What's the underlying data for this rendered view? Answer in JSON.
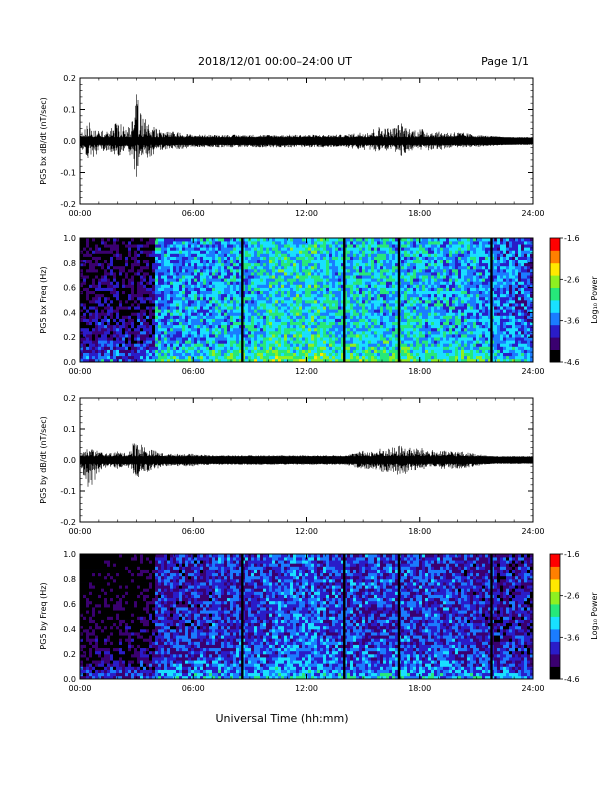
{
  "header": {
    "date_range": "2018/12/01  00:00–24:00 UT",
    "page": "Page 1/1"
  },
  "footer": {
    "xlabel": "Universal Time (hh:mm)"
  },
  "colors": {
    "trace": "#000000",
    "colormap": [
      "#000000",
      "#3a0070",
      "#2a1cc8",
      "#1a7cff",
      "#19e0ff",
      "#26e87a",
      "#8ef021",
      "#ffe800",
      "#ff8000",
      "#ff0000"
    ]
  },
  "chart_data": [
    {
      "type": "line",
      "ylabel": "PG5 bx dB/dt (nT/sec)",
      "xlim": [
        0,
        24
      ],
      "ylim": [
        -0.2,
        0.2
      ],
      "xticks": [
        "00:00",
        "06:00",
        "12:00",
        "18:00",
        "24:00"
      ],
      "yticks": [
        "-0.2",
        "-0.1",
        "0.0",
        "0.1",
        "0.2"
      ],
      "envelope": {
        "x": [
          0,
          0.5,
          1,
          1.5,
          2,
          2.5,
          3,
          3.2,
          3.5,
          4,
          4.5,
          5,
          6,
          7,
          8,
          9,
          10,
          11,
          12,
          13,
          14,
          15,
          15.5,
          16,
          16.5,
          17,
          17.5,
          18,
          19,
          20,
          21,
          22,
          23,
          24
        ],
        "y_max": [
          0.02,
          0.06,
          0.04,
          0.03,
          0.07,
          0.03,
          0.15,
          0.1,
          0.07,
          0.04,
          0.03,
          0.03,
          0.02,
          0.02,
          0.02,
          0.02,
          0.02,
          0.02,
          0.02,
          0.02,
          0.02,
          0.03,
          0.04,
          0.05,
          0.04,
          0.06,
          0.04,
          0.04,
          0.03,
          0.03,
          0.02,
          0.015,
          0.01,
          0.01
        ],
        "y_min": [
          -0.02,
          -0.06,
          -0.04,
          -0.03,
          -0.05,
          -0.03,
          -0.12,
          -0.1,
          -0.06,
          -0.04,
          -0.03,
          -0.03,
          -0.02,
          -0.02,
          -0.02,
          -0.02,
          -0.02,
          -0.02,
          -0.02,
          -0.02,
          -0.02,
          -0.03,
          -0.03,
          -0.04,
          -0.03,
          -0.05,
          -0.03,
          -0.03,
          -0.03,
          -0.02,
          -0.02,
          -0.015,
          -0.01,
          -0.01
        ]
      }
    },
    {
      "type": "heatmap",
      "ylabel": "PG5 bx Freq (Hz)",
      "colorbar_label": "Log₁₀ Power",
      "xlim": [
        0,
        24
      ],
      "ylim": [
        0,
        1
      ],
      "xticks": [
        "00:00",
        "06:00",
        "12:00",
        "18:00",
        "24:00"
      ],
      "yticks": [
        "0.0",
        "0.2",
        "0.4",
        "0.6",
        "0.8",
        "1.0"
      ],
      "clim": [
        -4.6,
        -1.6
      ],
      "cticks": [
        "-1.6",
        "-2.6",
        "-3.6",
        "-4.6"
      ],
      "gaps_hours": [
        8.6,
        14,
        16.9,
        21.8
      ],
      "level_by_hour": [
        -4.1,
        -4.0,
        -4.1,
        -4.0,
        -3.5,
        -3.5,
        -3.5,
        -3.4,
        -3.4,
        -3.3,
        -3.2,
        -3.2,
        -3.2,
        -3.3,
        -3.3,
        -3.3,
        -3.3,
        -3.3,
        -3.4,
        -3.4,
        -3.4,
        -3.5,
        -3.6,
        -3.7
      ]
    },
    {
      "type": "line",
      "ylabel": "PG5 by dB/dt (nT/sec)",
      "xlim": [
        0,
        24
      ],
      "ylim": [
        -0.2,
        0.2
      ],
      "xticks": [
        "00:00",
        "06:00",
        "12:00",
        "18:00",
        "24:00"
      ],
      "yticks": [
        "-0.2",
        "-0.1",
        "0.0",
        "0.1",
        "0.2"
      ],
      "envelope": {
        "x": [
          0,
          0.5,
          1,
          1.5,
          2,
          2.5,
          3,
          3.2,
          3.5,
          4,
          4.5,
          5,
          6,
          7,
          8,
          9,
          10,
          11,
          12,
          13,
          14,
          15,
          15.5,
          16,
          16.5,
          17,
          17.5,
          18,
          19,
          20,
          21,
          22,
          23,
          24
        ],
        "y_max": [
          0.02,
          0.04,
          0.03,
          0.02,
          0.03,
          0.02,
          0.08,
          0.06,
          0.04,
          0.03,
          0.02,
          0.02,
          0.02,
          0.015,
          0.015,
          0.015,
          0.015,
          0.015,
          0.015,
          0.015,
          0.015,
          0.03,
          0.03,
          0.04,
          0.04,
          0.05,
          0.04,
          0.04,
          0.03,
          0.03,
          0.02,
          0.01,
          0.01,
          0.01
        ],
        "y_min": [
          -0.02,
          -0.1,
          -0.04,
          -0.02,
          -0.03,
          -0.02,
          -0.06,
          -0.05,
          -0.04,
          -0.03,
          -0.02,
          -0.02,
          -0.02,
          -0.015,
          -0.015,
          -0.015,
          -0.015,
          -0.015,
          -0.015,
          -0.015,
          -0.015,
          -0.03,
          -0.03,
          -0.04,
          -0.04,
          -0.07,
          -0.04,
          -0.03,
          -0.03,
          -0.03,
          -0.02,
          -0.01,
          -0.01,
          -0.01
        ]
      }
    },
    {
      "type": "heatmap",
      "ylabel": "PG5 by Freq (Hz)",
      "colorbar_label": "Log₁₀ Power",
      "xlim": [
        0,
        24
      ],
      "ylim": [
        0,
        1
      ],
      "xticks": [
        "00:00",
        "06:00",
        "12:00",
        "18:00",
        "24:00"
      ],
      "yticks": [
        "0.0",
        "0.2",
        "0.4",
        "0.6",
        "0.8",
        "1.0"
      ],
      "clim": [
        -4.6,
        -1.6
      ],
      "cticks": [
        "-1.6",
        "-2.6",
        "-3.6",
        "-4.6"
      ],
      "gaps_hours": [
        8.6,
        14,
        16.9,
        21.8
      ],
      "level_by_hour": [
        -4.3,
        -4.3,
        -4.3,
        -4.2,
        -3.9,
        -3.9,
        -3.9,
        -3.8,
        -3.8,
        -3.8,
        -3.7,
        -3.7,
        -3.7,
        -3.8,
        -3.8,
        -3.8,
        -3.8,
        -3.8,
        -3.8,
        -3.8,
        -3.9,
        -3.9,
        -4.0,
        -4.0
      ]
    }
  ]
}
